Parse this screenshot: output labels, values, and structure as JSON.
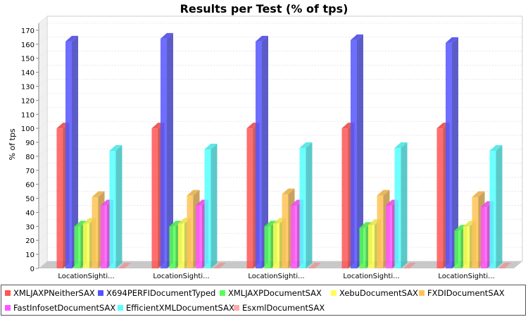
{
  "chart_data": {
    "type": "bar",
    "title": "Results per Test (% of tps)",
    "xlabel": "",
    "ylabel": "% of tps",
    "ylim": [
      0,
      175
    ],
    "yticks": [
      0,
      10,
      20,
      30,
      40,
      50,
      60,
      70,
      80,
      90,
      100,
      110,
      120,
      130,
      140,
      150,
      160,
      170
    ],
    "categories": [
      "LocationSighti...",
      "LocationSighti...",
      "LocationSighti...",
      "LocationSighti...",
      "LocationSighti..."
    ],
    "grid": true,
    "legend_position": "bottom",
    "series": [
      {
        "name": "XMLJAXPNeitherSAX",
        "color": "#ff5555",
        "values": [
          100,
          100,
          100,
          100,
          100
        ]
      },
      {
        "name": "X694PERFIDocumentTyped",
        "color": "#5555ff",
        "values": [
          162,
          164,
          162,
          163,
          161
        ]
      },
      {
        "name": "XMLJAXPDocumentSAX",
        "color": "#55ff55",
        "values": [
          30,
          30,
          30,
          29,
          27
        ]
      },
      {
        "name": "XebuDocumentSAX",
        "color": "#ffff55",
        "values": [
          32,
          32,
          32,
          31,
          30
        ]
      },
      {
        "name": "FXDIDocumentSAX",
        "color": "#ffc355",
        "values": [
          51,
          52,
          53,
          52,
          51
        ]
      },
      {
        "name": "FastInfosetDocumentSAX",
        "color": "#ff55ff",
        "values": [
          45,
          45,
          45,
          45,
          44
        ]
      },
      {
        "name": "EfficientXMLDocumentSAX",
        "color": "#55ffff",
        "values": [
          84,
          85,
          86,
          86,
          84
        ]
      },
      {
        "name": "EsxmlDocumentSAX",
        "color": "#ffaaaa",
        "values": [
          0,
          0,
          0,
          0,
          0
        ]
      }
    ]
  }
}
